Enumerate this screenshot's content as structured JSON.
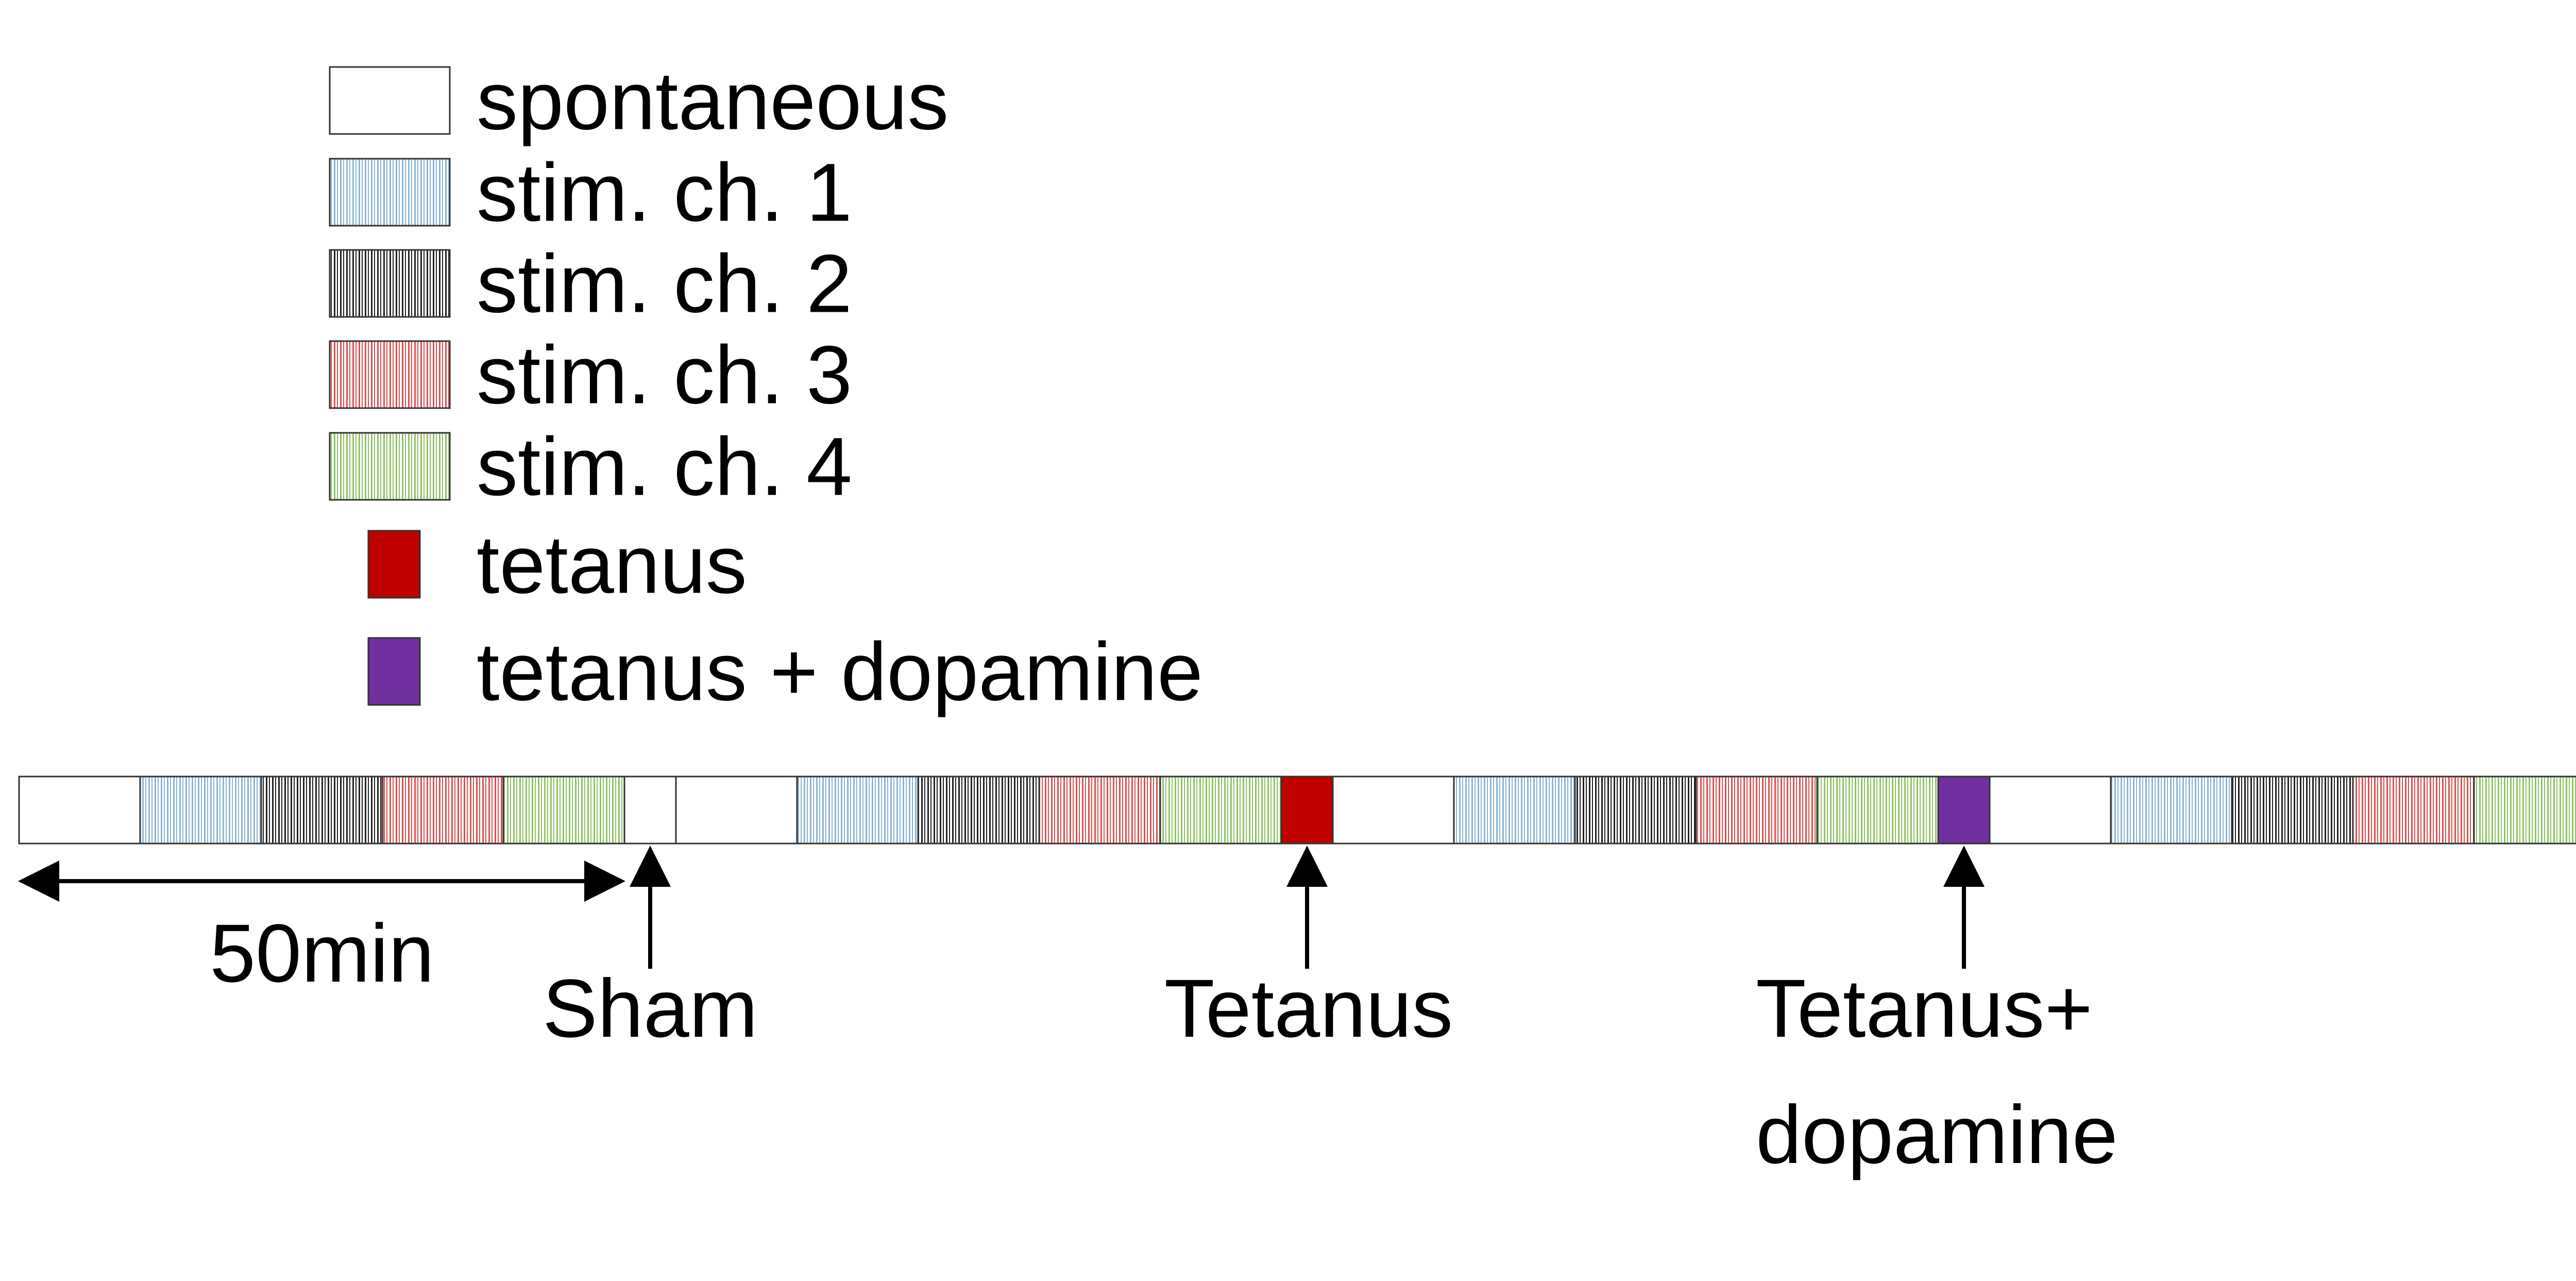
{
  "legend": {
    "items": [
      {
        "key": "spontaneous",
        "label": "spontaneous"
      },
      {
        "key": "stim1",
        "label": "stim. ch. 1"
      },
      {
        "key": "stim2",
        "label": "stim. ch. 2"
      },
      {
        "key": "stim3",
        "label": "stim. ch. 3"
      },
      {
        "key": "stim4",
        "label": "stim. ch. 4"
      },
      {
        "key": "tetanus",
        "label": "tetanus"
      },
      {
        "key": "tetanus_dopamine",
        "label": "tetanus + dopamine"
      }
    ]
  },
  "fills": {
    "spontaneous": {
      "bg": "#ffffff",
      "stripe": null
    },
    "stim1": {
      "bg": "#ffffff",
      "stripe": "#8eb4d4"
    },
    "stim2": {
      "bg": "#ffffff",
      "stripe": "#222222"
    },
    "stim3": {
      "bg": "#ffffff",
      "stripe": "#d9534f"
    },
    "stim4": {
      "bg": "#ffffff",
      "stripe": "#8fc466"
    },
    "tetanus": {
      "bg": "#c00000",
      "stripe": null
    },
    "tetanus_dopamine": {
      "bg": "#7030a0",
      "stripe": null
    }
  },
  "timeline": {
    "segments": [
      "spontaneous",
      "stim1",
      "stim2",
      "stim3",
      "stim4",
      "spontaneous-short",
      "spontaneous",
      "stim1",
      "stim2",
      "stim3",
      "stim4",
      "tetanus",
      "spontaneous",
      "stim1",
      "stim2",
      "stim3",
      "stim4",
      "tetanus_dopamine",
      "spontaneous",
      "stim1",
      "stim2",
      "stim3",
      "stim4"
    ]
  },
  "scale_bar": {
    "label": "50min"
  },
  "events": [
    {
      "key": "sham",
      "label_lines": [
        "Sham"
      ]
    },
    {
      "key": "tetanus",
      "label_lines": [
        "Tetanus"
      ]
    },
    {
      "key": "tetanus_dopamine",
      "label_lines": [
        "Tetanus+",
        "dopamine"
      ]
    }
  ]
}
